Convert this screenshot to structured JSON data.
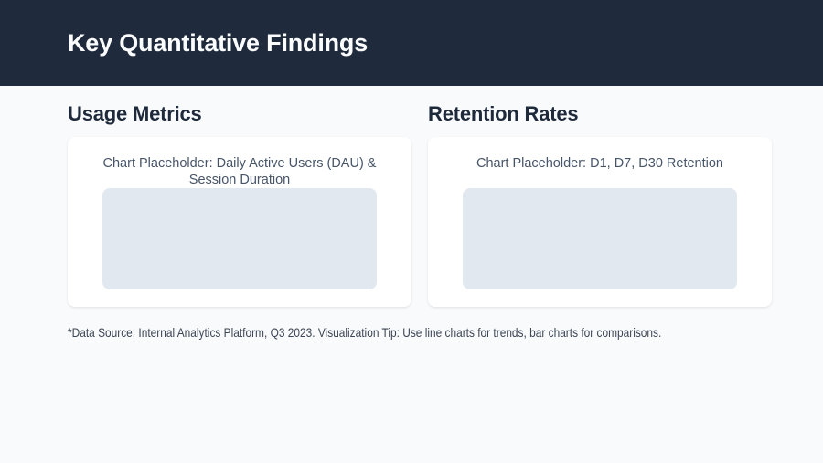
{
  "header": {
    "title": "Key Quantitative Findings"
  },
  "sections": [
    {
      "heading": "Usage Metrics",
      "card": {
        "placeholder_label": "Chart Placeholder: Daily Active Users (DAU) & Session Duration"
      }
    },
    {
      "heading": "Retention Rates",
      "card": {
        "placeholder_label": "Chart Placeholder: D1, D7, D30 Retention"
      }
    }
  ],
  "footnote": "*Data Source: Internal Analytics Platform, Q3 2023. Visualization Tip: Use line charts for trends, bar charts for comparisons.",
  "colors": {
    "header_bg": "#1f2a3c",
    "page_bg": "#f8fafc",
    "card_bg": "#ffffff",
    "placeholder_bg": "#e2e8f0",
    "heading_text": "#1e293b",
    "card_label_text": "#475569",
    "footnote_text": "#3d4654"
  }
}
